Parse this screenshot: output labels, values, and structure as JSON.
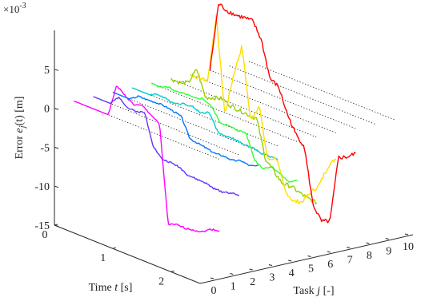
{
  "chart_data": {
    "type": "line",
    "plot_style": "3d-waterfall",
    "zlabel": {
      "pre": "Error ",
      "var": "e",
      "sub": "j",
      "post": "(t) [m]"
    },
    "xlabel": {
      "pre": "Task ",
      "var": "j",
      "post": " [-]"
    },
    "ylabel": {
      "pre": "Time ",
      "var": "t",
      "post": " [s]"
    },
    "z_multiplier": {
      "base": "×10",
      "exp": "-3"
    },
    "z_ticks": [
      "5",
      "0",
      "-5",
      "-10",
      "-15"
    ],
    "task_ticks": [
      "0",
      "1",
      "2",
      "3",
      "4",
      "5",
      "6",
      "7",
      "8",
      "9",
      "10"
    ],
    "time_ticks": [
      "0",
      "1",
      "2"
    ],
    "zlim": [
      -15,
      10
    ],
    "grid": false,
    "series": [
      {
        "task": 1,
        "color": "#ff00ff",
        "values": [
          0,
          0,
          0,
          0,
          0,
          4.2,
          3.3,
          2.6,
          2.9,
          2.2,
          1.4,
          -11.0,
          -10.6,
          -10.6,
          -10.4,
          -10.2,
          -9.4,
          -9.2
        ]
      },
      {
        "task": 2,
        "color": "#6633ff",
        "values": [
          0,
          0,
          0,
          1.3,
          0.3,
          0.3,
          0.6,
          -3.3,
          -4.5,
          -4.5,
          -4.6,
          -5.2,
          -5.3,
          -5.3,
          -5.6,
          -5.6,
          -5.3,
          -5.2
        ]
      },
      {
        "task": 3,
        "color": "#0077ff",
        "values": [
          0,
          0,
          0,
          0.8,
          0.8,
          0.9,
          0.9,
          0.7,
          0.4,
          -2.0,
          -2.2,
          -2.4,
          -2.6,
          -2.5,
          -2.6,
          -2.2,
          -2.4,
          -2.0
        ]
      },
      {
        "task": 4,
        "color": "#00cccc",
        "values": [
          0,
          0,
          0,
          0.5,
          0.3,
          0.2,
          0.6,
          0.7,
          0.3,
          0.8,
          -1.3,
          -1.4,
          -1.3,
          -1.6,
          -1.5,
          -1.8,
          -1.7,
          -1.7
        ]
      },
      {
        "task": 5,
        "color": "#33ff33",
        "values": [
          0,
          0,
          0.4,
          0.2,
          0.4,
          0.3,
          0.7,
          0.1,
          -1.5,
          -1.5,
          -1.6,
          -1.5,
          -4.5,
          -5.2,
          -4.5,
          -5.0,
          -5.6,
          -5.0
        ]
      },
      {
        "task": 6,
        "color": "#99cc00",
        "values": [
          0,
          0,
          0.4,
          2.6,
          -0.6,
          -0.2,
          0.1,
          -0.4,
          -0.5,
          -0.6,
          -0.7,
          -5.4,
          -6.6,
          -7.7,
          -7.6,
          -8.0,
          -8.3,
          -8.4
        ]
      },
      {
        "task": 7,
        "color": "#ffdd00",
        "values": [
          0,
          0,
          0.2,
          8.9,
          -3.4,
          2.1,
          6.3,
          -2.8,
          -0.4,
          -7.0,
          -6.2,
          -10.0,
          -11.0,
          -10.6,
          -9.0,
          -7.6,
          -4.8,
          -3.2
        ]
      },
      {
        "task": 8,
        "color": "#ff0000",
        "values": [
          0,
          9.0,
          8.5,
          8.4,
          8.5,
          8.5,
          6.5,
          2.0,
          1.4,
          -1.6,
          -3.8,
          -4.9,
          -11.9,
          -13.7,
          -13.2,
          -4.6,
          -4.1,
          -3.2
        ]
      },
      {
        "task": 9,
        "color": "#ff0000",
        "values": [
          0,
          0,
          0,
          0,
          0,
          0,
          0,
          0,
          0,
          0,
          0,
          0,
          0,
          0,
          0,
          0,
          0,
          0
        ]
      },
      {
        "task": 10,
        "color": "#ff0000",
        "values": [
          0,
          0,
          0,
          0,
          0,
          0,
          0,
          0,
          0,
          0,
          0,
          0,
          0,
          0,
          0,
          0,
          0,
          0
        ]
      }
    ]
  }
}
